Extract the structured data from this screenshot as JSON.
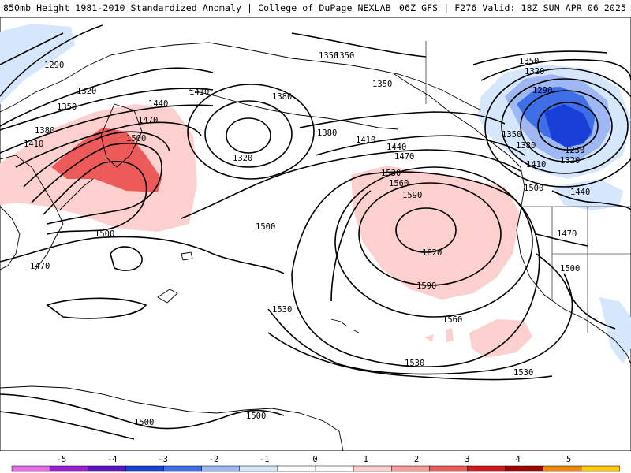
{
  "header": {
    "left": "850mb Height 1981-2010 Standardized Anomaly | College of DuPage NEXLAB",
    "right": "06Z GFS | F276 Valid: 18Z SUN APR 06 2025"
  },
  "map": {
    "field": "850mb geopotential height with standardized anomaly shading",
    "contour_labels": [
      "1290",
      "1320",
      "1350",
      "1380",
      "1410",
      "1440",
      "1470",
      "1500",
      "1410",
      "1380",
      "1350",
      "1320",
      "1380",
      "1350",
      "1350",
      "1410",
      "1440",
      "1470",
      "1500",
      "1530",
      "1560",
      "1590",
      "1620",
      "1590",
      "1560",
      "1530",
      "1500",
      "1470",
      "1530",
      "1530",
      "1500",
      "1500",
      "1350",
      "1320",
      "1290",
      "1350",
      "1380",
      "1230",
      "1320",
      "1410",
      "1500",
      "1440",
      "1470",
      "1500"
    ]
  },
  "colorbar": {
    "ticks": [
      "-5",
      "-4",
      "-3",
      "-2",
      "-1",
      "0",
      "1",
      "2",
      "3",
      "4",
      "5"
    ],
    "colors": [
      "#e86ce8",
      "#9b1fd0",
      "#5a14c8",
      "#1a3fd9",
      "#3f6fe6",
      "#9fb7f2",
      "#d6e6fb",
      "#ffffff",
      "#ffffff",
      "#fdd0d0",
      "#f79b9b",
      "#ec5a5a",
      "#d41818",
      "#a00000",
      "#f08a00",
      "#ffc800"
    ]
  }
}
